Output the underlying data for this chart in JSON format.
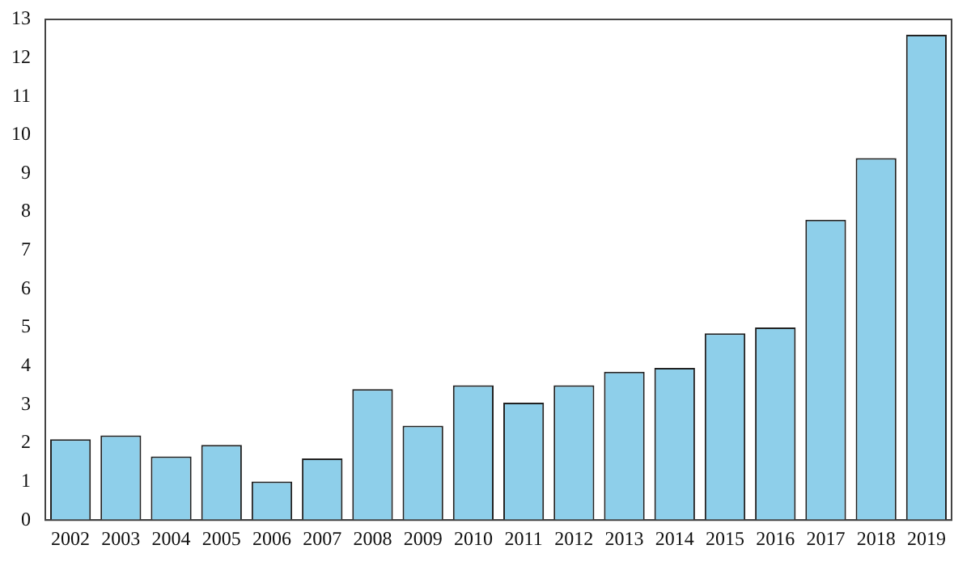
{
  "chart_data": {
    "type": "bar",
    "categories": [
      "2002",
      "2003",
      "2004",
      "2005",
      "2006",
      "2007",
      "2008",
      "2009",
      "2010",
      "2011",
      "2012",
      "2013",
      "2014",
      "2015",
      "2016",
      "2017",
      "2018",
      "2019"
    ],
    "values": [
      2.1,
      2.2,
      1.65,
      1.95,
      1.0,
      1.6,
      3.4,
      2.45,
      3.5,
      3.05,
      3.5,
      3.85,
      3.95,
      4.85,
      5.0,
      7.8,
      9.4,
      12.6
    ],
    "color": "#8ecfea",
    "ylim": [
      0,
      13
    ],
    "yticks": [
      0,
      1,
      2,
      3,
      4,
      5,
      6,
      7,
      8,
      9,
      10,
      11,
      12,
      13
    ],
    "grid": false,
    "legend": false
  }
}
